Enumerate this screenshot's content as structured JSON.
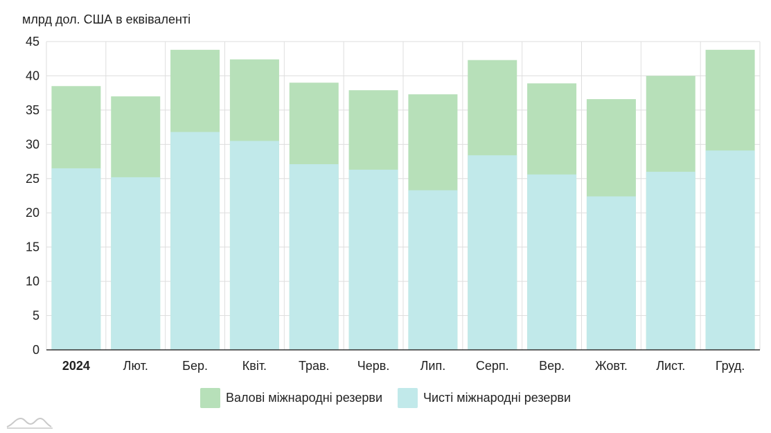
{
  "chart_data": {
    "type": "bar",
    "stacked": "overlay",
    "unit_label": "млрд дол. США в еквіваленті",
    "categories": [
      "2024",
      "Лют.",
      "Бер.",
      "Квіт.",
      "Трав.",
      "Черв.",
      "Лип.",
      "Серп.",
      "Вер.",
      "Жовт.",
      "Лист.",
      "Груд."
    ],
    "bold_categories": [
      "2024"
    ],
    "ylim": [
      0,
      45
    ],
    "yticks": [
      0,
      5,
      10,
      15,
      20,
      25,
      30,
      35,
      40,
      45
    ],
    "grid": true,
    "legend_position": "bottom-center",
    "series": [
      {
        "name": "Валові міжнародні резерви",
        "color": "#b7e0b9",
        "values": [
          38.5,
          37.0,
          43.8,
          42.4,
          39.0,
          37.9,
          37.3,
          42.3,
          38.9,
          36.6,
          40.0,
          43.8
        ]
      },
      {
        "name": "Чисті міжнародні резерви",
        "color": "#c1e9ea",
        "values": [
          26.5,
          25.2,
          31.8,
          30.5,
          27.1,
          26.3,
          23.3,
          28.4,
          25.6,
          22.4,
          26.0,
          29.1
        ]
      }
    ]
  }
}
